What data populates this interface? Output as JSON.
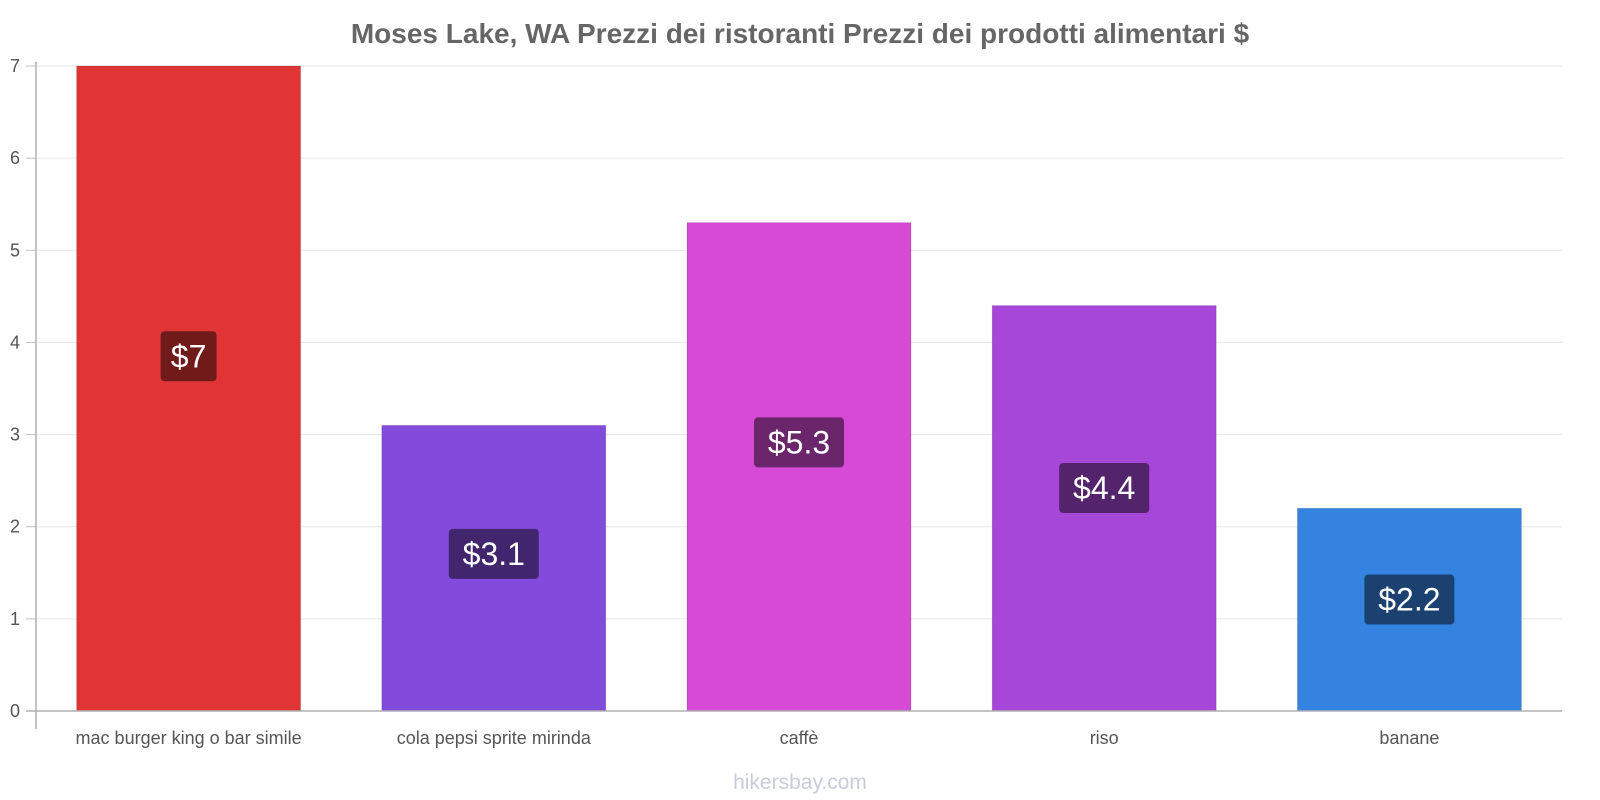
{
  "chart_data": {
    "type": "bar",
    "title": "Moses Lake, WA Prezzi dei ristoranti Prezzi dei prodotti alimentari $",
    "categories": [
      "mac burger king o bar simile",
      "cola pepsi sprite mirinda",
      "caffè",
      "riso",
      "banane"
    ],
    "values": [
      7,
      3.1,
      5.3,
      4.4,
      2.2
    ],
    "value_labels": [
      "$7",
      "$3.1",
      "$5.3",
      "$4.4",
      "$2.2"
    ],
    "y_ticks": [
      0,
      1,
      2,
      3,
      4,
      5,
      6,
      7
    ],
    "ylim": [
      0,
      7
    ],
    "xlabel": "",
    "ylabel": "",
    "grid": true,
    "colors": [
      "#e03535",
      "#824bdb",
      "#d64ad6",
      "#a647d9",
      "#3583e0"
    ],
    "label_bg_colors": [
      "#701a1a",
      "#41256d",
      "#6b256b",
      "#53236c",
      "#1a4170"
    ]
  },
  "watermark": "hikersbay.com"
}
